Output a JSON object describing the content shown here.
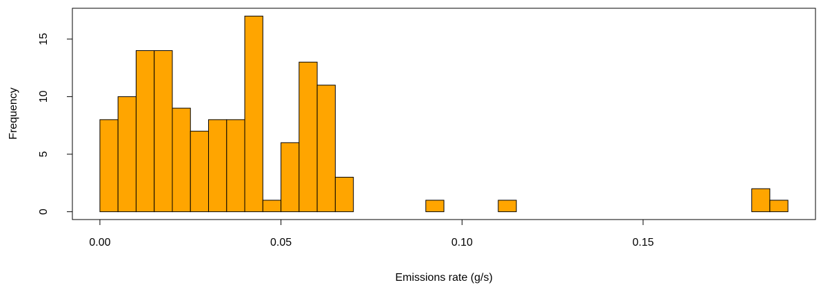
{
  "chart_data": {
    "type": "histogram",
    "title": "",
    "xlabel": "Emissions rate (g/s)",
    "ylabel": "Frequency",
    "bin_width": 0.005,
    "bins": [
      {
        "start": 0.0,
        "end": 0.005,
        "count": 8
      },
      {
        "start": 0.005,
        "end": 0.01,
        "count": 10
      },
      {
        "start": 0.01,
        "end": 0.015,
        "count": 14
      },
      {
        "start": 0.015,
        "end": 0.02,
        "count": 14
      },
      {
        "start": 0.02,
        "end": 0.025,
        "count": 9
      },
      {
        "start": 0.025,
        "end": 0.03,
        "count": 7
      },
      {
        "start": 0.03,
        "end": 0.035,
        "count": 8
      },
      {
        "start": 0.035,
        "end": 0.04,
        "count": 8
      },
      {
        "start": 0.04,
        "end": 0.045,
        "count": 17
      },
      {
        "start": 0.045,
        "end": 0.05,
        "count": 1
      },
      {
        "start": 0.05,
        "end": 0.055,
        "count": 6
      },
      {
        "start": 0.055,
        "end": 0.06,
        "count": 13
      },
      {
        "start": 0.06,
        "end": 0.065,
        "count": 11
      },
      {
        "start": 0.065,
        "end": 0.07,
        "count": 3
      },
      {
        "start": 0.07,
        "end": 0.075,
        "count": 0
      },
      {
        "start": 0.075,
        "end": 0.08,
        "count": 0
      },
      {
        "start": 0.08,
        "end": 0.085,
        "count": 0
      },
      {
        "start": 0.085,
        "end": 0.09,
        "count": 0
      },
      {
        "start": 0.09,
        "end": 0.095,
        "count": 1
      },
      {
        "start": 0.095,
        "end": 0.1,
        "count": 0
      },
      {
        "start": 0.1,
        "end": 0.105,
        "count": 0
      },
      {
        "start": 0.105,
        "end": 0.11,
        "count": 0
      },
      {
        "start": 0.11,
        "end": 0.115,
        "count": 1
      },
      {
        "start": 0.115,
        "end": 0.12,
        "count": 0
      },
      {
        "start": 0.12,
        "end": 0.125,
        "count": 0
      },
      {
        "start": 0.125,
        "end": 0.13,
        "count": 0
      },
      {
        "start": 0.13,
        "end": 0.135,
        "count": 0
      },
      {
        "start": 0.135,
        "end": 0.14,
        "count": 0
      },
      {
        "start": 0.14,
        "end": 0.145,
        "count": 0
      },
      {
        "start": 0.145,
        "end": 0.15,
        "count": 0
      },
      {
        "start": 0.15,
        "end": 0.155,
        "count": 0
      },
      {
        "start": 0.155,
        "end": 0.16,
        "count": 0
      },
      {
        "start": 0.16,
        "end": 0.165,
        "count": 0
      },
      {
        "start": 0.165,
        "end": 0.17,
        "count": 0
      },
      {
        "start": 0.17,
        "end": 0.175,
        "count": 0
      },
      {
        "start": 0.175,
        "end": 0.18,
        "count": 0
      },
      {
        "start": 0.18,
        "end": 0.185,
        "count": 2
      },
      {
        "start": 0.185,
        "end": 0.19,
        "count": 1
      }
    ],
    "x_ticks": [
      {
        "value": 0.0,
        "label": "0.00"
      },
      {
        "value": 0.05,
        "label": "0.05"
      },
      {
        "value": 0.1,
        "label": "0.10"
      },
      {
        "value": 0.15,
        "label": "0.15"
      }
    ],
    "y_ticks": [
      {
        "value": 0,
        "label": "0"
      },
      {
        "value": 5,
        "label": "5"
      },
      {
        "value": 10,
        "label": "10"
      },
      {
        "value": 15,
        "label": "15"
      }
    ],
    "xlim": [
      -0.0076,
      0.1976
    ],
    "ylim": [
      -0.68,
      17.68
    ],
    "grid": false,
    "legend": "none",
    "colors": {
      "bar_fill": "#FFA500",
      "bar_stroke": "#000000",
      "axis": "#000000",
      "background": "#FFFFFF"
    }
  }
}
